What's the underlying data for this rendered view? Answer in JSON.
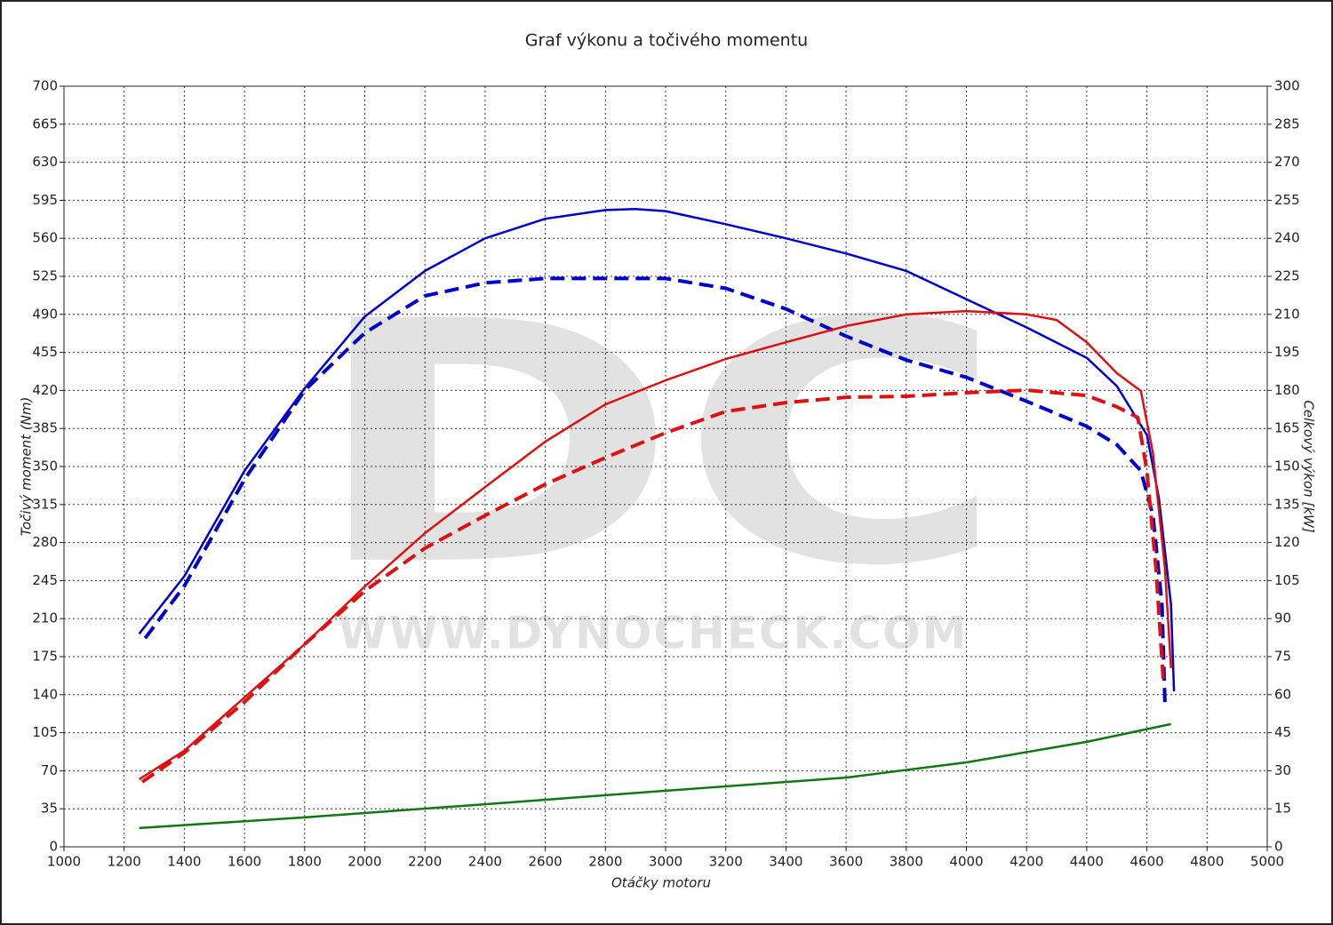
{
  "chart_data": {
    "type": "line",
    "title": "Graf výkonu a točivého momentu",
    "x_label": "Otáčky motoru",
    "y_label": "Točivý moment (Nm)",
    "y2_label": "Celkový výkon [kW]",
    "watermark": {
      "logo": "DC",
      "url": "WWW.DYNOCHECK.COM"
    },
    "xlim": [
      1000,
      5000
    ],
    "xticks": [
      1000,
      1200,
      1400,
      1600,
      1800,
      2000,
      2200,
      2400,
      2600,
      2800,
      3000,
      3200,
      3400,
      3600,
      3800,
      4000,
      4200,
      4400,
      4600,
      4800,
      5000
    ],
    "ylim": [
      0,
      700
    ],
    "yticks": [
      0,
      35,
      70,
      105,
      140,
      175,
      210,
      245,
      280,
      315,
      350,
      385,
      420,
      455,
      490,
      525,
      560,
      595,
      630,
      665,
      700
    ],
    "y2lim": [
      0,
      300
    ],
    "y2ticks": [
      0,
      15,
      30,
      45,
      60,
      75,
      90,
      105,
      120,
      135,
      150,
      165,
      180,
      195,
      210,
      225,
      240,
      255,
      270,
      285,
      300
    ],
    "grid": true,
    "series": [
      {
        "color": "#0000cc",
        "dashed": false,
        "x": [
          1250,
          1400,
          1600,
          1800,
          2000,
          2200,
          2400,
          2600,
          2800,
          2900,
          3000,
          3200,
          3400,
          3600,
          3800,
          4000,
          4200,
          4400,
          4500,
          4600,
          4640,
          4680,
          4690
        ],
        "values": [
          196,
          249,
          346,
          422,
          488,
          530,
          560,
          578,
          586,
          587,
          585,
          573,
          560,
          546,
          530,
          504,
          478,
          450,
          424,
          379,
          321,
          223,
          143
        ]
      },
      {
        "color": "#0000cc",
        "dashed": true,
        "x": [
          1270,
          1400,
          1600,
          1800,
          2000,
          2200,
          2400,
          2600,
          2800,
          3000,
          3200,
          3400,
          3600,
          3800,
          4000,
          4200,
          4400,
          4500,
          4580,
          4620,
          4650,
          4660
        ],
        "values": [
          192,
          240,
          338,
          420,
          473,
          507,
          519,
          523,
          523,
          523,
          514,
          495,
          470,
          448,
          432,
          410,
          387,
          370,
          346,
          305,
          223,
          132
        ]
      },
      {
        "color": "#dd1111",
        "dashed": false,
        "axis": "y2",
        "x": [
          1250,
          1400,
          1600,
          1800,
          2000,
          2200,
          2400,
          2600,
          2800,
          3000,
          3200,
          3400,
          3600,
          3800,
          4000,
          4200,
          4300,
          4400,
          4500,
          4580,
          4620,
          4660,
          4680
        ],
        "values": [
          26.6,
          37.9,
          58.9,
          79.9,
          102.7,
          123.7,
          141.9,
          159.8,
          174.5,
          184,
          192.4,
          199,
          205.4,
          210,
          211.3,
          210,
          207.8,
          199,
          186.8,
          179.8,
          155.3,
          109.7,
          70.4
        ]
      },
      {
        "color": "#dd1111",
        "dashed": true,
        "axis": "y2",
        "x": [
          1260,
          1400,
          1600,
          1800,
          2000,
          2200,
          2400,
          2600,
          2800,
          3000,
          3200,
          3400,
          3600,
          3800,
          4000,
          4200,
          4400,
          4500,
          4570,
          4600,
          4630,
          4655
        ],
        "values": [
          25.6,
          37.1,
          57.1,
          79.9,
          100.9,
          117.8,
          130.7,
          143,
          153.5,
          163.3,
          171.7,
          175.2,
          177.3,
          177.7,
          179.1,
          180.1,
          178,
          173.5,
          169.3,
          148.2,
          109.7,
          64.8
        ]
      },
      {
        "color": "#117711",
        "dashed": false,
        "axis": "y2",
        "x": [
          1250,
          1800,
          2400,
          3000,
          3600,
          4000,
          4400,
          4680
        ],
        "values": [
          7.4,
          11.6,
          16.8,
          22.1,
          27.3,
          33.3,
          41.4,
          48.4
        ]
      }
    ]
  }
}
